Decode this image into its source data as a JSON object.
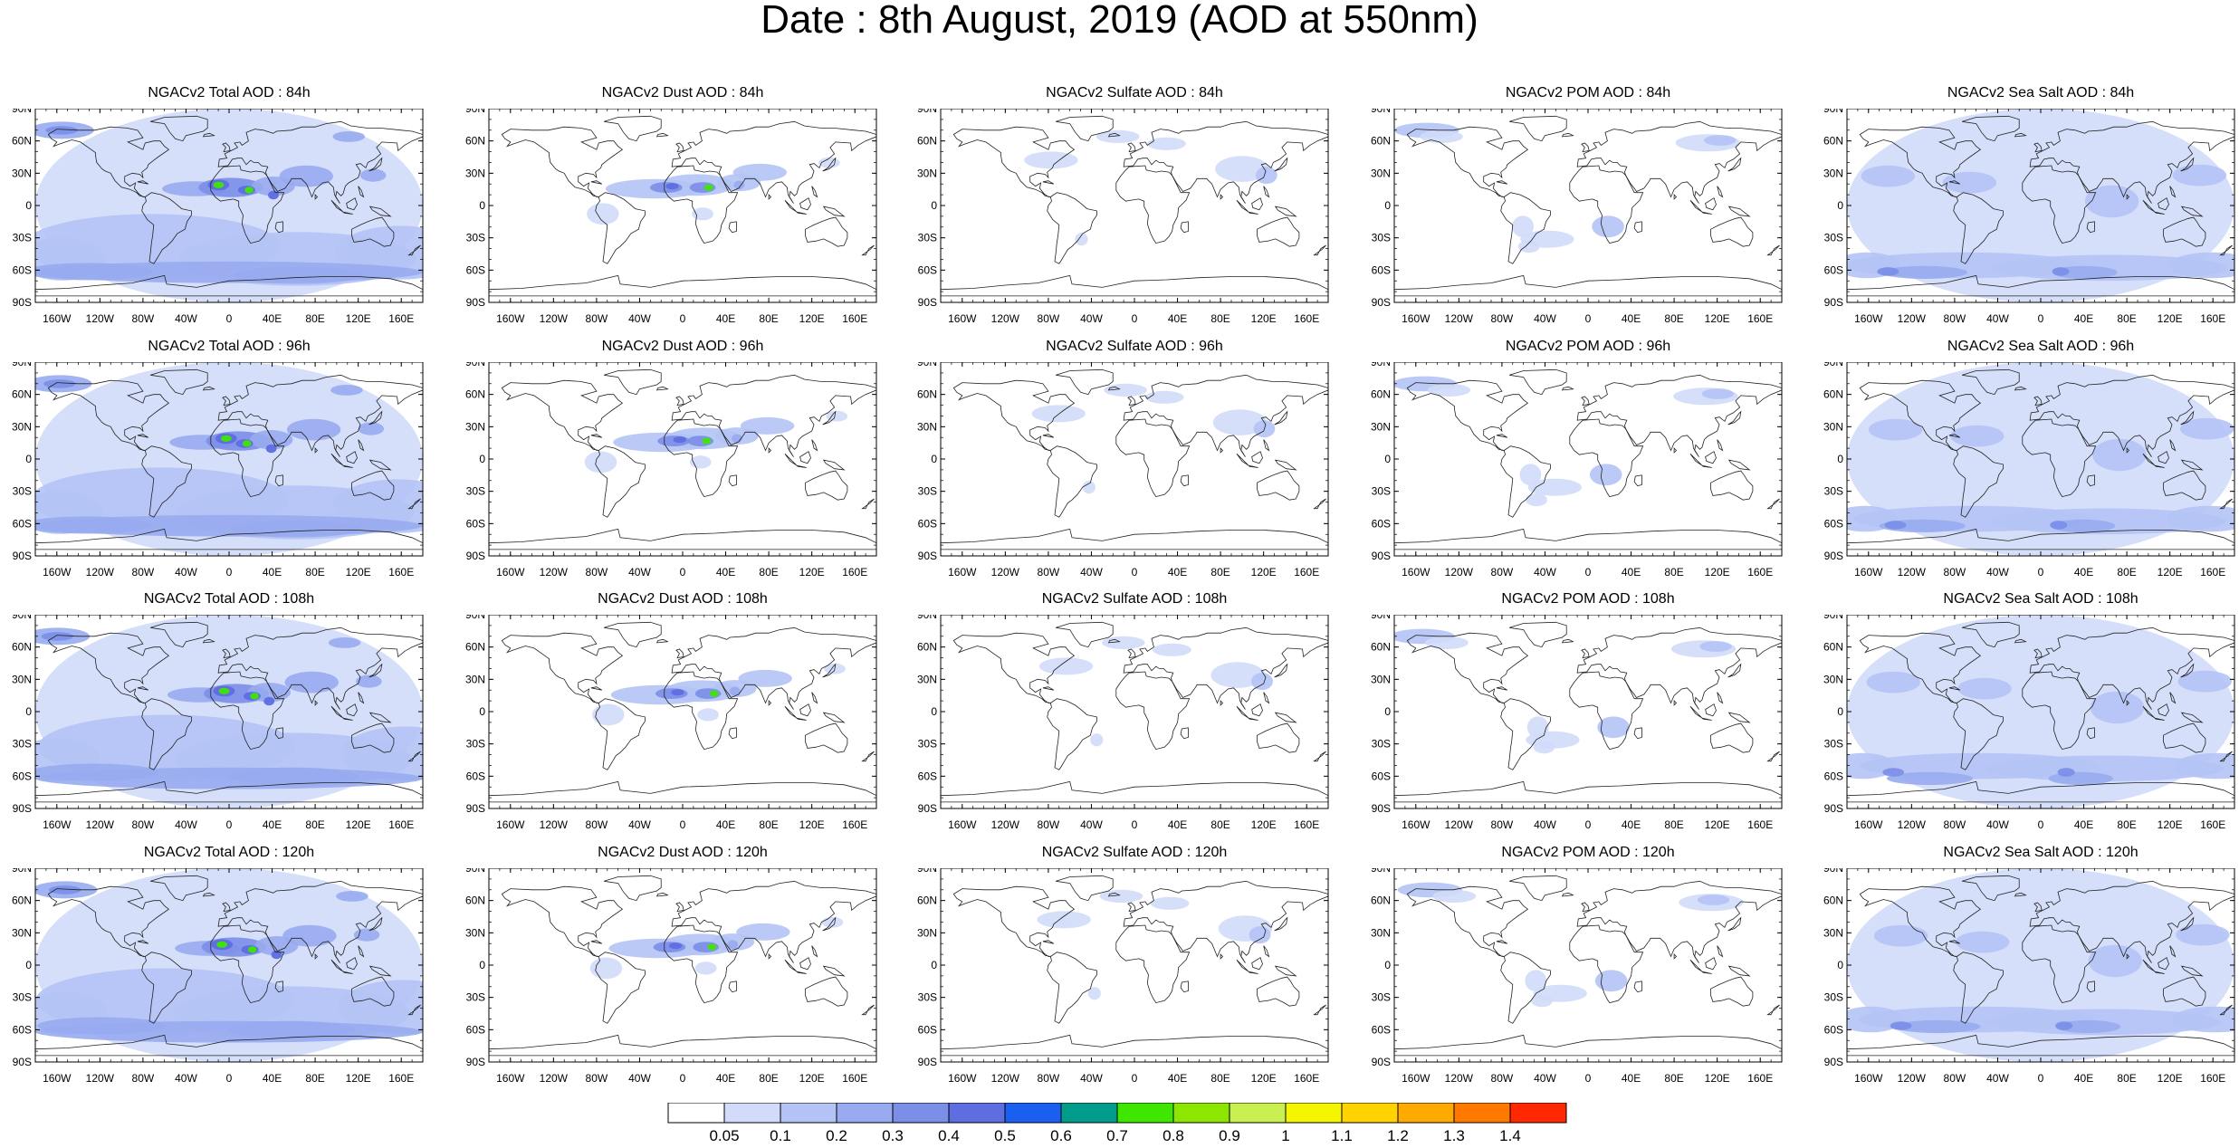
{
  "title": "Date : 8th August, 2019 (AOD at 550nm)",
  "row_labels": [
    "84h",
    "96h",
    "108h",
    "120h"
  ],
  "panels": [
    [
      "NGACv2 Total AOD : 84h",
      "NGACv2 Dust AOD : 84h",
      "NGACv2 Sulfate AOD : 84h",
      "NGACv2 POM AOD : 84h",
      "NGACv2 Sea Salt AOD : 84h"
    ],
    [
      "NGACv2 Total AOD : 96h",
      "NGACv2 Dust AOD : 96h",
      "NGACv2 Sulfate AOD : 96h",
      "NGACv2 POM AOD : 96h",
      "NGACv2 Sea Salt AOD : 96h"
    ],
    [
      "NGACv2 Total AOD : 108h",
      "NGACv2 Dust AOD : 108h",
      "NGACv2 Sulfate AOD : 108h",
      "NGACv2 POM AOD : 108h",
      "NGACv2 Sea Salt AOD : 108h"
    ],
    [
      "NGACv2 Total AOD : 120h",
      "NGACv2 Dust AOD : 120h",
      "NGACv2 Sulfate AOD : 120h",
      "NGACv2 POM AOD : 120h",
      "NGACv2 Sea Salt  AOD : 120h"
    ]
  ],
  "latitude_ticks": [
    "90N",
    "60N",
    "30N",
    "0",
    "30S",
    "60S",
    "90S"
  ],
  "longitude_ticks": [
    "160W",
    "120W",
    "80W",
    "40W",
    "0",
    "40E",
    "80E",
    "120E",
    "160E"
  ],
  "colorbar": {
    "labels": [
      "0.05",
      "0.1",
      "0.2",
      "0.3",
      "0.4",
      "0.5",
      "0.6",
      "0.7",
      "0.8",
      "0.9",
      "1",
      "1.1",
      "1.2",
      "1.3",
      "1.4"
    ],
    "colors": [
      "#ffffff",
      "#d2dcfa",
      "#b4c3f5",
      "#98abf0",
      "#7b8ee8",
      "#5e6de0",
      "#1b5ff0",
      "#009c8c",
      "#3ee600",
      "#8ce600",
      "#c8f050",
      "#f5f500",
      "#ffd200",
      "#ffaa00",
      "#ff7800",
      "#ff2800"
    ]
  },
  "colors": {
    "land_outline": "#222222",
    "light_aod": "#c9d5f7",
    "mid_aod": "#8ea1ec",
    "dark_aod": "#5665d8",
    "dust_high": "#3ee600"
  }
}
